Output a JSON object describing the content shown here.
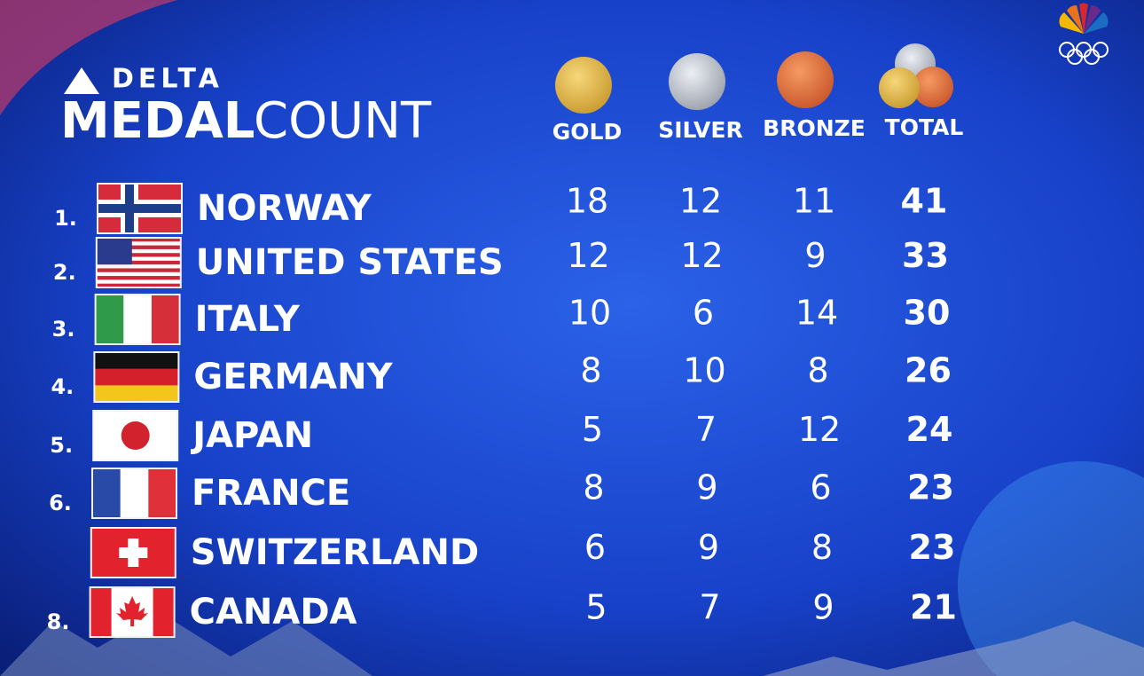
{
  "header": {
    "brand": "DELTA",
    "title_bold": "MEDAL",
    "title_light": "COUNT"
  },
  "table": {
    "columns": [
      "GOLD",
      "SILVER",
      "BRONZE",
      "TOTAL"
    ],
    "rows": [
      {
        "rank": "1.",
        "country": "NORWAY",
        "gold": 18,
        "silver": 12,
        "bronze": 11,
        "total": 41
      },
      {
        "rank": "2.",
        "country": "UNITED STATES",
        "gold": 12,
        "silver": 12,
        "bronze": 9,
        "total": 33
      },
      {
        "rank": "3.",
        "country": "ITALY",
        "gold": 10,
        "silver": 6,
        "bronze": 14,
        "total": 30
      },
      {
        "rank": "4.",
        "country": "GERMANY",
        "gold": 8,
        "silver": 10,
        "bronze": 8,
        "total": 26
      },
      {
        "rank": "5.",
        "country": "JAPAN",
        "gold": 5,
        "silver": 7,
        "bronze": 12,
        "total": 24
      },
      {
        "rank": "6.",
        "country": "FRANCE",
        "gold": 8,
        "silver": 9,
        "bronze": 6,
        "total": 23
      },
      {
        "rank": null,
        "country": "SWITZERLAND",
        "gold": 6,
        "silver": 9,
        "bronze": 8,
        "total": 23
      },
      {
        "rank": "8.",
        "country": "CANADA",
        "gold": 5,
        "silver": 7,
        "bronze": 9,
        "total": 21
      }
    ]
  }
}
